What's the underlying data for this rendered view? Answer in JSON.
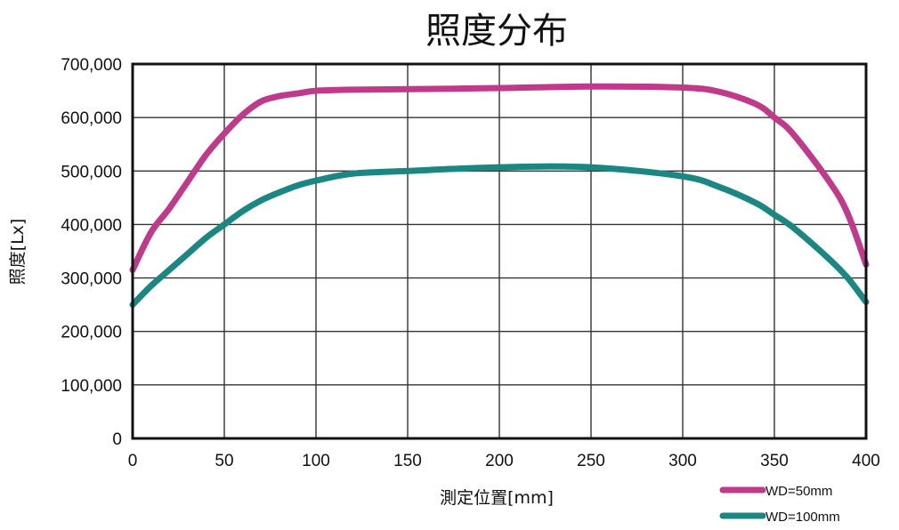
{
  "chart_data": {
    "type": "line",
    "title": "照度分布",
    "xlabel": "測定位置[mm]",
    "ylabel": "照度[Lx]",
    "xlim": [
      0,
      400
    ],
    "ylim": [
      0,
      700000
    ],
    "x_ticks": [
      0,
      50,
      100,
      150,
      200,
      250,
      300,
      350,
      400
    ],
    "x_tick_labels": [
      "0",
      "50",
      "100",
      "150",
      "200",
      "250",
      "300",
      "350",
      "400"
    ],
    "y_ticks": [
      0,
      100000,
      200000,
      300000,
      400000,
      500000,
      600000,
      700000
    ],
    "y_tick_labels": [
      "0",
      "100,000",
      "200,000",
      "300,000",
      "400,000",
      "500,000",
      "600,000",
      "700,000"
    ],
    "grid": true,
    "legend_position": "bottom-right",
    "series": [
      {
        "name": "WD=50mm",
        "color": "#C0398A",
        "x": [
          0,
          10,
          20,
          30,
          40,
          50,
          60,
          70,
          80,
          90,
          100,
          120,
          150,
          200,
          250,
          300,
          320,
          340,
          350,
          360,
          380,
          390,
          400
        ],
        "y": [
          315000,
          385000,
          430000,
          480000,
          530000,
          570000,
          605000,
          630000,
          640000,
          645000,
          650000,
          652000,
          653000,
          655000,
          658000,
          656000,
          648000,
          625000,
          600000,
          570000,
          480000,
          420000,
          325000
        ]
      },
      {
        "name": "WD=100mm",
        "color": "#1A8783",
        "x": [
          0,
          10,
          20,
          30,
          40,
          50,
          60,
          70,
          80,
          90,
          100,
          120,
          150,
          200,
          250,
          300,
          320,
          340,
          350,
          360,
          380,
          390,
          400
        ],
        "y": [
          250000,
          285000,
          315000,
          345000,
          375000,
          400000,
          425000,
          445000,
          460000,
          473000,
          482000,
          495000,
          500000,
          507000,
          507000,
          490000,
          470000,
          440000,
          418000,
          395000,
          335000,
          300000,
          255000
        ]
      }
    ]
  }
}
